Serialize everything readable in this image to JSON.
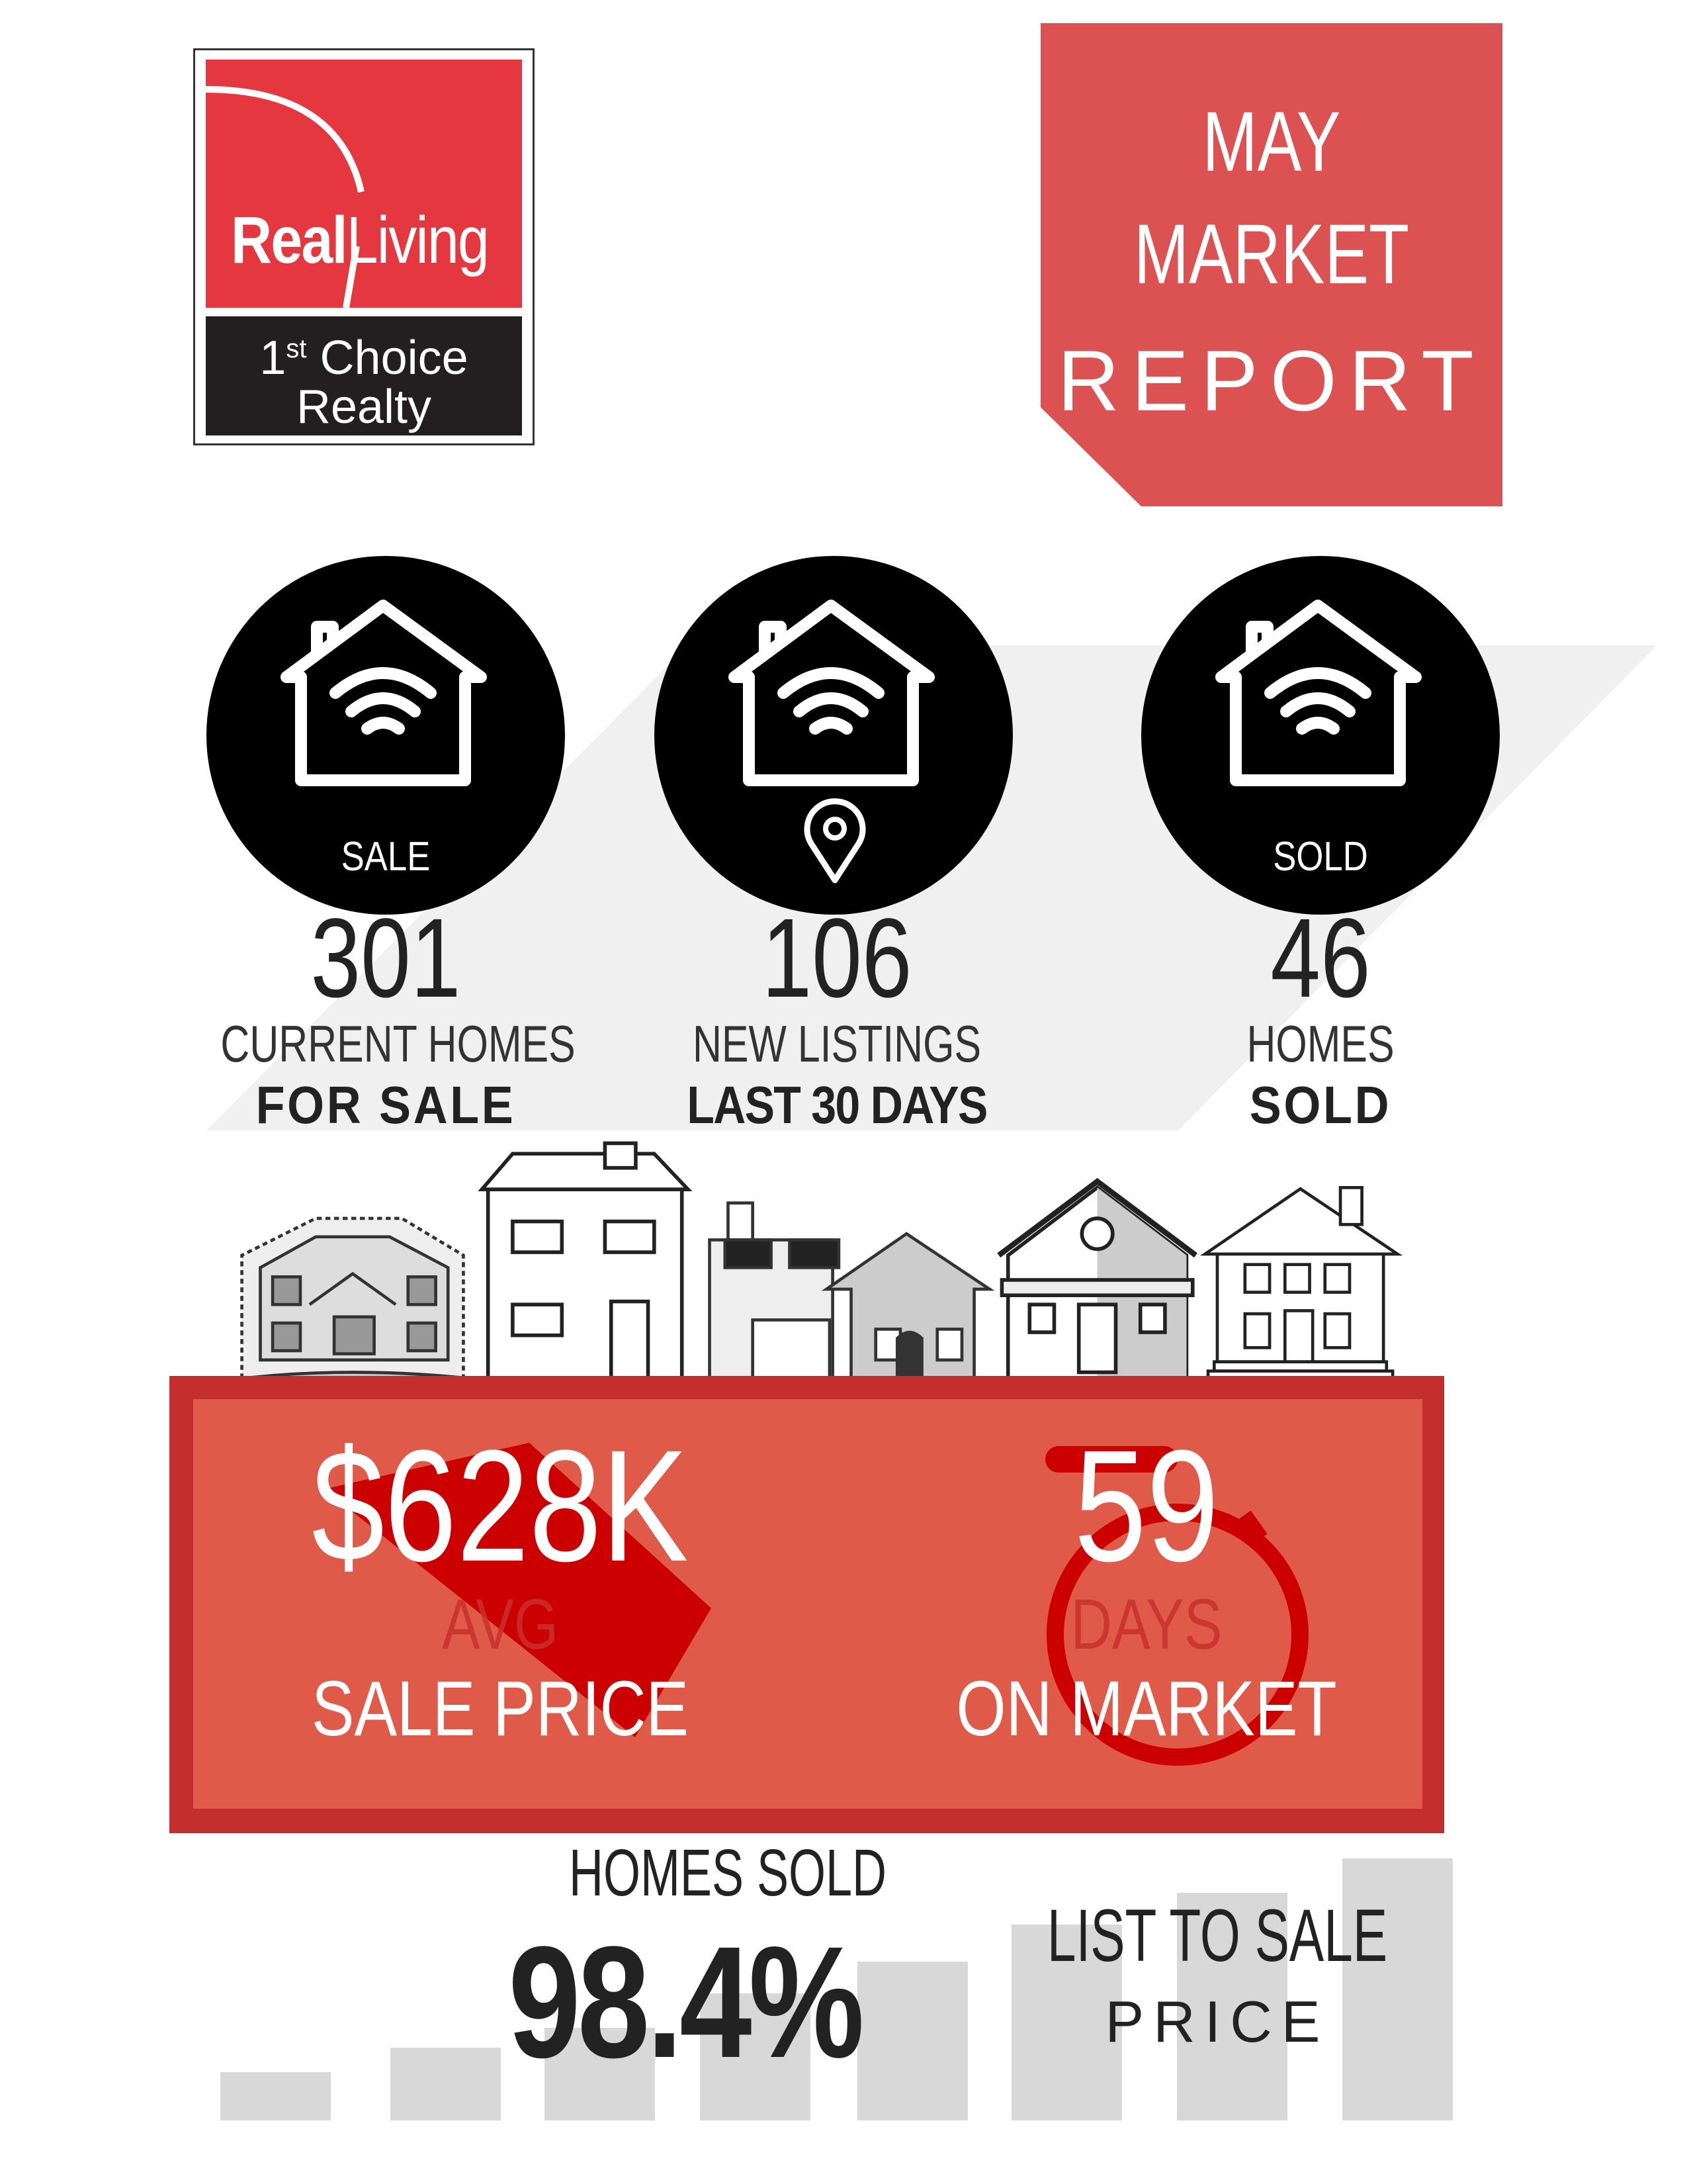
{
  "logo": {
    "brand_bold": "Real",
    "brand_light": "Living",
    "line1_num": "1",
    "line1_sup": "st",
    "line1_text": "Choice",
    "line2": "Realty"
  },
  "report": {
    "line1": "MAY",
    "line2": "MARKET",
    "line3": "REPORT"
  },
  "stats": [
    {
      "icon": "home-wifi-icon",
      "badge": "SALE",
      "value": "301",
      "label": "CURRENT HOMES",
      "label_bold": "FOR SALE"
    },
    {
      "icon": "home-wifi-icon",
      "badge": "",
      "value": "106",
      "label": "NEW LISTINGS",
      "label_bold": "LAST 30 DAYS"
    },
    {
      "icon": "home-wifi-icon",
      "badge": "SOLD",
      "value": "46",
      "label": "HOMES",
      "label_bold": "SOLD"
    }
  ],
  "price": {
    "value": "$628K",
    "label_small": "AVG",
    "label": "SALE PRICE"
  },
  "days": {
    "value": "59",
    "label_small": "DAYS",
    "label": "ON MARKET"
  },
  "ratio": {
    "title": "HOMES SOLD",
    "value": "98.4%",
    "label": "LIST TO SALE",
    "label2": "PRICE"
  },
  "colors": {
    "red": "#e5373f",
    "report_red": "#dc5152",
    "box_red": "#c42f2e",
    "box_inner": "#e05a49",
    "dark": "#231f20",
    "gray": "#d8d8d8"
  }
}
